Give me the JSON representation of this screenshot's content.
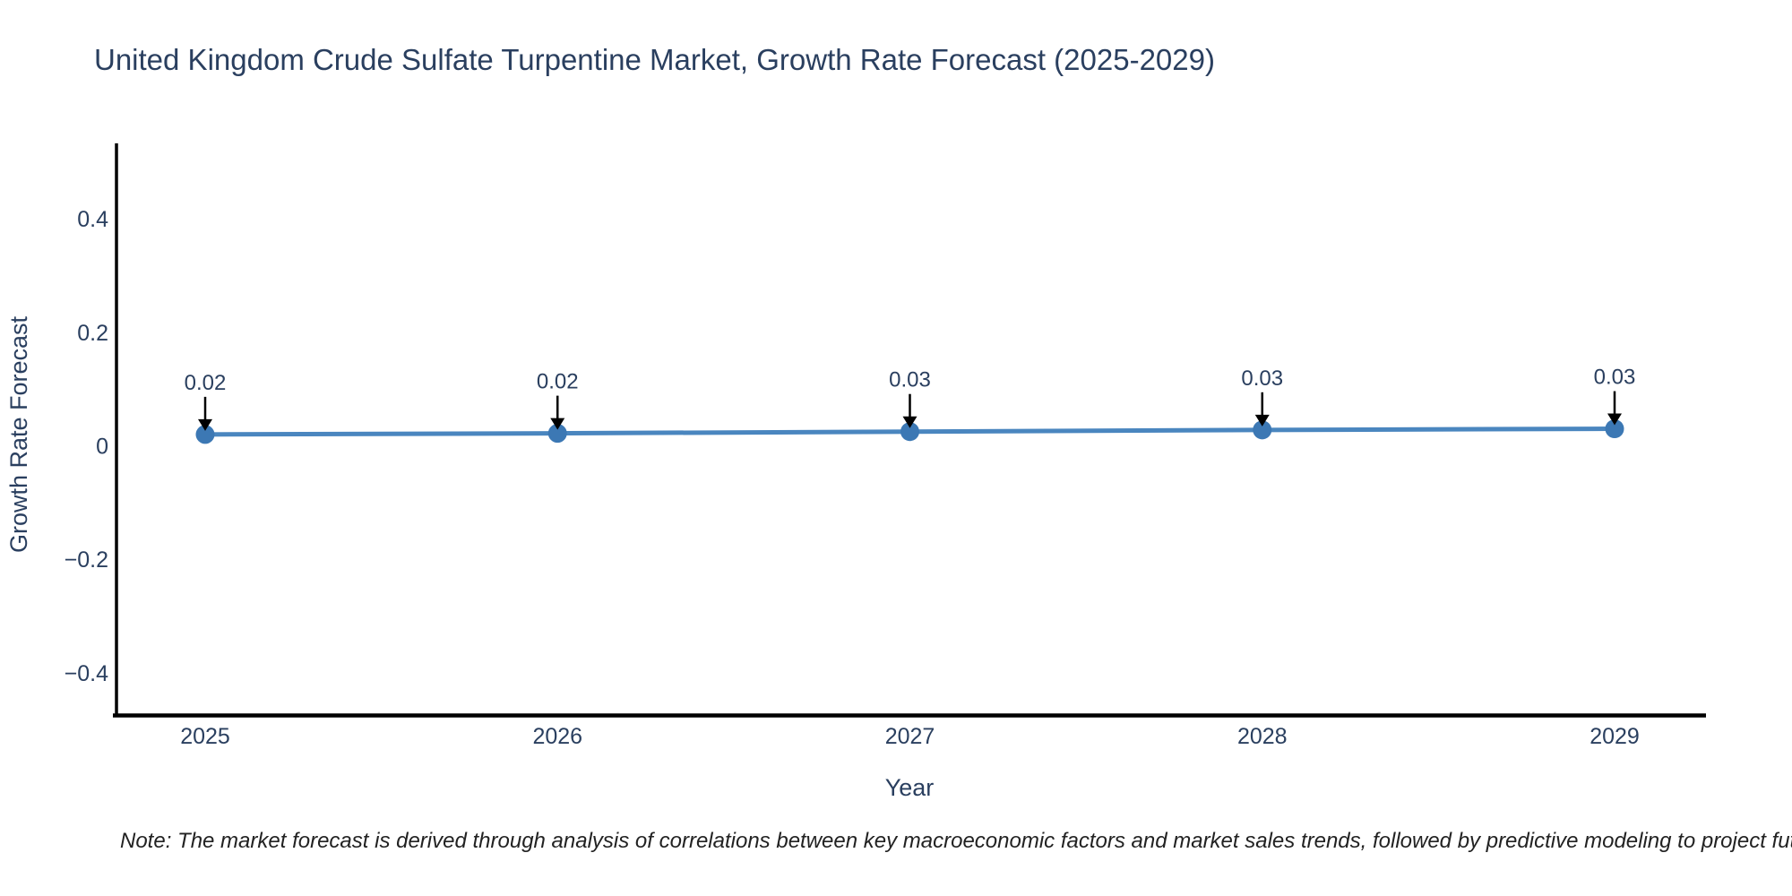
{
  "chart_data": {
    "type": "line",
    "title": "United Kingdom Crude Sulfate Turpentine Market, Growth Rate Forecast (2025-2029)",
    "xlabel": "Year",
    "ylabel": "Growth Rate Forecast",
    "categories": [
      "2025",
      "2026",
      "2027",
      "2028",
      "2029"
    ],
    "series": [
      {
        "name": "Growth Rate Forecast",
        "values": [
          0.02,
          0.022,
          0.025,
          0.028,
          0.03
        ]
      }
    ],
    "point_labels": [
      "0.02",
      "0.02",
      "0.03",
      "0.03",
      "0.03"
    ],
    "y_tick_values": [
      0.4,
      0.2,
      0,
      -0.2,
      -0.4
    ],
    "y_tick_labels": [
      "0.4",
      "0.2",
      "0",
      "−0.2",
      "−0.4"
    ],
    "ylim": [
      -0.476,
      0.533
    ],
    "grid": false,
    "legend_position": "none",
    "note": "Note: The market forecast is derived through analysis of correlations between key macroeconomic factors and market sales trends, followed by predictive modeling to project future sales.",
    "colors": {
      "line": "#4a86bf",
      "marker": "#3c78b4",
      "text": "#2a3f5f",
      "axis": "#000000",
      "arrow": "#000000",
      "background": "#ffffff"
    }
  }
}
